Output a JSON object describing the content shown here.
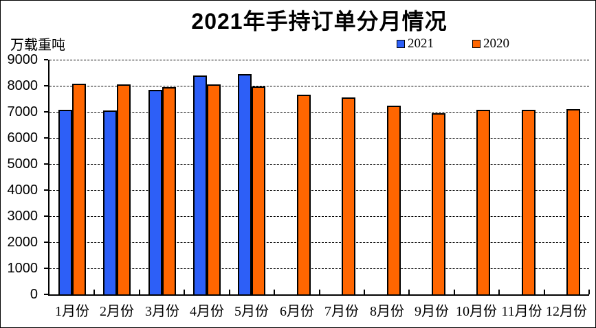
{
  "title": "2021年手持订单分月情况",
  "y_axis_unit": "万载重吨",
  "colors": {
    "series_2021": "#2D5FF7",
    "series_2020": "#FF6600",
    "bar_border": "#000000",
    "axis": "#000000",
    "background": "#FFFFFF"
  },
  "chart_data": {
    "type": "bar",
    "title": "2021年手持订单分月情况",
    "ylabel": "万载重吨",
    "categories": [
      "1月份",
      "2月份",
      "3月份",
      "4月份",
      "5月份",
      "6月份",
      "7月份",
      "8月份",
      "9月份",
      "10月份",
      "11月份",
      "12月份"
    ],
    "series": [
      {
        "name": "2021",
        "color": "#2D5FF7",
        "values": [
          7080,
          7050,
          7830,
          8390,
          8440,
          null,
          null,
          null,
          null,
          null,
          null,
          null
        ]
      },
      {
        "name": "2020",
        "color": "#FF6600",
        "values": [
          8090,
          8040,
          7950,
          8040,
          7970,
          7650,
          7540,
          7230,
          6960,
          7070,
          7080,
          7110
        ]
      }
    ],
    "ylim": [
      0,
      9000
    ],
    "y_ticks": [
      0,
      1000,
      2000,
      3000,
      4000,
      5000,
      6000,
      7000,
      8000,
      9000
    ],
    "grid": "horizontal-dashed",
    "legend_position": "top-right"
  }
}
